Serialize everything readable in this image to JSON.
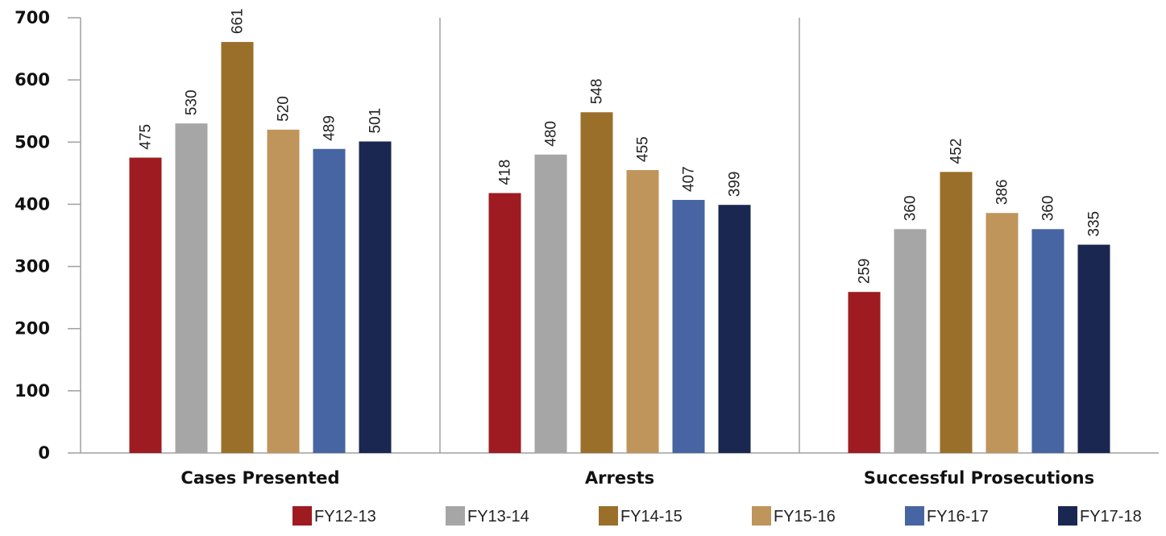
{
  "chart_data": {
    "type": "bar",
    "categories": [
      "Cases Presented",
      "Arrests",
      "Successful Prosecutions"
    ],
    "series": [
      {
        "name": "FY12-13",
        "color": "#9e1b22",
        "values": [
          475,
          418,
          259
        ]
      },
      {
        "name": "FY13-14",
        "color": "#a6a6a6",
        "values": [
          530,
          480,
          360
        ]
      },
      {
        "name": "FY14-15",
        "color": "#9a6f2a",
        "values": [
          661,
          548,
          452
        ]
      },
      {
        "name": "FY15-16",
        "color": "#bf955b",
        "values": [
          520,
          455,
          386
        ]
      },
      {
        "name": "FY16-17",
        "color": "#4665a2",
        "values": [
          489,
          407,
          360
        ]
      },
      {
        "name": "FY17-18",
        "color": "#1a2750",
        "values": [
          501,
          399,
          335
        ]
      }
    ],
    "yticks": [
      "0",
      "100",
      "200",
      "300",
      "400",
      "500",
      "600",
      "700"
    ],
    "ylim": [
      0,
      700
    ],
    "grid": false,
    "legend": "bottom",
    "title": "",
    "xlabel": "",
    "ylabel": ""
  }
}
